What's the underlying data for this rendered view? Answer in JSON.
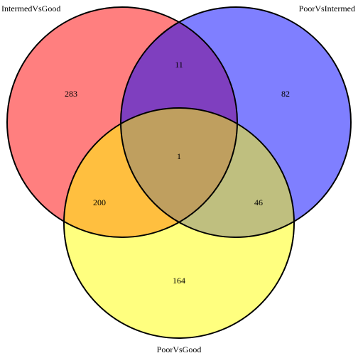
{
  "diagram": {
    "type": "venn3",
    "sets": [
      {
        "key": "A",
        "name": "IntermedVsGood",
        "color": "#ff0000"
      },
      {
        "key": "B",
        "name": "PoorVsIntermed",
        "color": "#0000ff"
      },
      {
        "key": "C",
        "name": "PoorVsGood",
        "color": "#ffff00"
      }
    ],
    "regions": {
      "A_only": "283",
      "B_only": "82",
      "C_only": "164",
      "A_B": "11",
      "A_C": "200",
      "B_C": "46",
      "A_B_C": "1"
    },
    "region_fill_opacity": 0.5,
    "outline_color": "#000000"
  }
}
